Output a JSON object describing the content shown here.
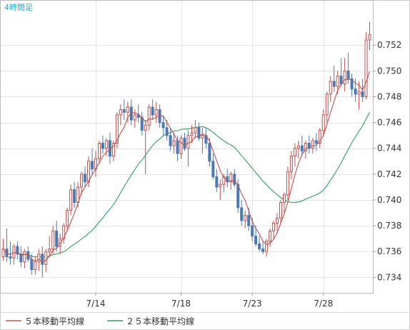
{
  "chart_data": {
    "type": "candlestick",
    "period_label": "4時間足",
    "ylim": [
      0.7328,
      0.7555
    ],
    "y_ticks": [
      "0.734",
      "0.736",
      "0.738",
      "0.740",
      "0.742",
      "0.744",
      "0.746",
      "0.748",
      "0.750",
      "0.752"
    ],
    "x_ticks": [
      {
        "label": "7/14",
        "index": 26
      },
      {
        "label": "7/18",
        "index": 50
      },
      {
        "label": "7/23",
        "index": 70
      },
      {
        "label": "7/28",
        "index": 90
      }
    ],
    "grid": true,
    "legend": [
      {
        "name": "５本移動平均線",
        "color": "#c0504d"
      },
      {
        "name": "２５本移動平均線",
        "color": "#2ca05a"
      }
    ],
    "colors": {
      "up": "#c0504d",
      "down": "#4a79b4",
      "grid": "#e4e4e4",
      "axis": "#cccccc",
      "period": "#2aa6c9"
    },
    "candles": [
      [
        0.7356,
        0.737,
        0.7353,
        0.7362
      ],
      [
        0.7362,
        0.7378,
        0.7352,
        0.7356
      ],
      [
        0.7356,
        0.7368,
        0.735,
        0.7355
      ],
      [
        0.7355,
        0.7366,
        0.735,
        0.7364
      ],
      [
        0.7364,
        0.7368,
        0.7354,
        0.7358
      ],
      [
        0.7358,
        0.7364,
        0.7348,
        0.7352
      ],
      [
        0.7352,
        0.7362,
        0.7347,
        0.736
      ],
      [
        0.736,
        0.7364,
        0.7352,
        0.7354
      ],
      [
        0.7354,
        0.7358,
        0.7342,
        0.7346
      ],
      [
        0.7346,
        0.7356,
        0.7342,
        0.7352
      ],
      [
        0.7352,
        0.7362,
        0.7345,
        0.7358
      ],
      [
        0.7358,
        0.7364,
        0.734,
        0.735
      ],
      [
        0.735,
        0.7362,
        0.7344,
        0.736
      ],
      [
        0.736,
        0.7372,
        0.7356,
        0.7362
      ],
      [
        0.7362,
        0.738,
        0.7358,
        0.7376
      ],
      [
        0.7376,
        0.7384,
        0.736,
        0.7364
      ],
      [
        0.7364,
        0.7374,
        0.7358,
        0.737
      ],
      [
        0.737,
        0.7382,
        0.7366,
        0.738
      ],
      [
        0.738,
        0.7394,
        0.7376,
        0.7392
      ],
      [
        0.7392,
        0.7412,
        0.7388,
        0.7408
      ],
      [
        0.7408,
        0.7414,
        0.7394,
        0.7398
      ],
      [
        0.7398,
        0.7414,
        0.7394,
        0.741
      ],
      [
        0.741,
        0.7422,
        0.7404,
        0.742
      ],
      [
        0.742,
        0.7426,
        0.741,
        0.7414
      ],
      [
        0.7414,
        0.7434,
        0.741,
        0.743
      ],
      [
        0.743,
        0.744,
        0.742,
        0.7424
      ],
      [
        0.7424,
        0.7438,
        0.7418,
        0.7432
      ],
      [
        0.7432,
        0.7446,
        0.7428,
        0.7444
      ],
      [
        0.7444,
        0.745,
        0.7436,
        0.744
      ],
      [
        0.744,
        0.7448,
        0.7434,
        0.7446
      ],
      [
        0.7446,
        0.7452,
        0.7428,
        0.7434
      ],
      [
        0.7434,
        0.7446,
        0.743,
        0.7444
      ],
      [
        0.7444,
        0.7468,
        0.744,
        0.7466
      ],
      [
        0.7466,
        0.7474,
        0.7458,
        0.747
      ],
      [
        0.747,
        0.7478,
        0.7462,
        0.7468
      ],
      [
        0.7468,
        0.7476,
        0.746,
        0.7472
      ],
      [
        0.7472,
        0.7478,
        0.7458,
        0.7462
      ],
      [
        0.7462,
        0.747,
        0.7456,
        0.7466
      ],
      [
        0.7466,
        0.7474,
        0.746,
        0.7464
      ],
      [
        0.7464,
        0.7468,
        0.745,
        0.7454
      ],
      [
        0.7454,
        0.7462,
        0.742,
        0.7458
      ],
      [
        0.7458,
        0.7474,
        0.7454,
        0.7472
      ],
      [
        0.7472,
        0.7478,
        0.7462,
        0.7466
      ],
      [
        0.7466,
        0.7476,
        0.746,
        0.747
      ],
      [
        0.747,
        0.7474,
        0.7456,
        0.746
      ],
      [
        0.746,
        0.7466,
        0.745,
        0.7456
      ],
      [
        0.7456,
        0.7462,
        0.7446,
        0.745
      ],
      [
        0.745,
        0.7456,
        0.7438,
        0.7442
      ],
      [
        0.7442,
        0.7452,
        0.7436,
        0.7446
      ],
      [
        0.7446,
        0.745,
        0.743,
        0.7436
      ],
      [
        0.7436,
        0.745,
        0.7432,
        0.7448
      ],
      [
        0.7448,
        0.7452,
        0.7438,
        0.744
      ],
      [
        0.744,
        0.7454,
        0.7426,
        0.745
      ],
      [
        0.745,
        0.7458,
        0.7444,
        0.7452
      ],
      [
        0.7452,
        0.7462,
        0.7448,
        0.7456
      ],
      [
        0.7456,
        0.746,
        0.7446,
        0.7448
      ],
      [
        0.7448,
        0.7456,
        0.7436,
        0.745
      ],
      [
        0.745,
        0.7456,
        0.744,
        0.7444
      ],
      [
        0.7444,
        0.7448,
        0.7426,
        0.743
      ],
      [
        0.743,
        0.7436,
        0.7416,
        0.7418
      ],
      [
        0.7418,
        0.7424,
        0.7406,
        0.741
      ],
      [
        0.741,
        0.7416,
        0.74,
        0.7412
      ],
      [
        0.7412,
        0.742,
        0.7406,
        0.7418
      ],
      [
        0.7418,
        0.7424,
        0.741,
        0.7414
      ],
      [
        0.7414,
        0.7422,
        0.7408,
        0.742
      ],
      [
        0.742,
        0.7424,
        0.741,
        0.7412
      ],
      [
        0.7412,
        0.7416,
        0.739,
        0.7394
      ],
      [
        0.7394,
        0.74,
        0.738,
        0.7384
      ],
      [
        0.7384,
        0.7392,
        0.7378,
        0.7388
      ],
      [
        0.7388,
        0.7394,
        0.7376,
        0.738
      ],
      [
        0.738,
        0.7386,
        0.7368,
        0.7372
      ],
      [
        0.7372,
        0.738,
        0.7364,
        0.7366
      ],
      [
        0.7366,
        0.7372,
        0.736,
        0.7362
      ],
      [
        0.7362,
        0.7368,
        0.7358,
        0.736
      ],
      [
        0.736,
        0.737,
        0.7356,
        0.7368
      ],
      [
        0.7368,
        0.7378,
        0.7364,
        0.7376
      ],
      [
        0.7376,
        0.7384,
        0.737,
        0.7382
      ],
      [
        0.7382,
        0.739,
        0.7376,
        0.7386
      ],
      [
        0.7386,
        0.74,
        0.7382,
        0.7398
      ],
      [
        0.7398,
        0.7406,
        0.739,
        0.7404
      ],
      [
        0.7404,
        0.7426,
        0.74,
        0.7422
      ],
      [
        0.7422,
        0.7438,
        0.7416,
        0.7434
      ],
      [
        0.7434,
        0.7444,
        0.7426,
        0.744
      ],
      [
        0.744,
        0.7446,
        0.7432,
        0.7442
      ],
      [
        0.7442,
        0.745,
        0.7434,
        0.7438
      ],
      [
        0.7438,
        0.7446,
        0.7432,
        0.7444
      ],
      [
        0.7444,
        0.745,
        0.7436,
        0.744
      ],
      [
        0.744,
        0.7448,
        0.7436,
        0.7446
      ],
      [
        0.7446,
        0.7452,
        0.7438,
        0.7444
      ],
      [
        0.7444,
        0.7456,
        0.744,
        0.7454
      ],
      [
        0.7454,
        0.747,
        0.745,
        0.7466
      ],
      [
        0.7466,
        0.7484,
        0.746,
        0.7482
      ],
      [
        0.7482,
        0.7496,
        0.7476,
        0.7492
      ],
      [
        0.7492,
        0.7504,
        0.7484,
        0.7488
      ],
      [
        0.7488,
        0.75,
        0.7482,
        0.7496
      ],
      [
        0.7496,
        0.751,
        0.7488,
        0.749
      ],
      [
        0.749,
        0.751,
        0.7484,
        0.75
      ],
      [
        0.75,
        0.7514,
        0.749,
        0.7494
      ],
      [
        0.7494,
        0.7498,
        0.748,
        0.7486
      ],
      [
        0.7486,
        0.7494,
        0.7476,
        0.7482
      ],
      [
        0.7482,
        0.7492,
        0.747,
        0.7484
      ],
      [
        0.7484,
        0.7494,
        0.7476,
        0.748
      ],
      [
        0.748,
        0.753,
        0.7478,
        0.7524
      ],
      [
        0.7524,
        0.7538,
        0.7516,
        0.7528
      ]
    ]
  }
}
